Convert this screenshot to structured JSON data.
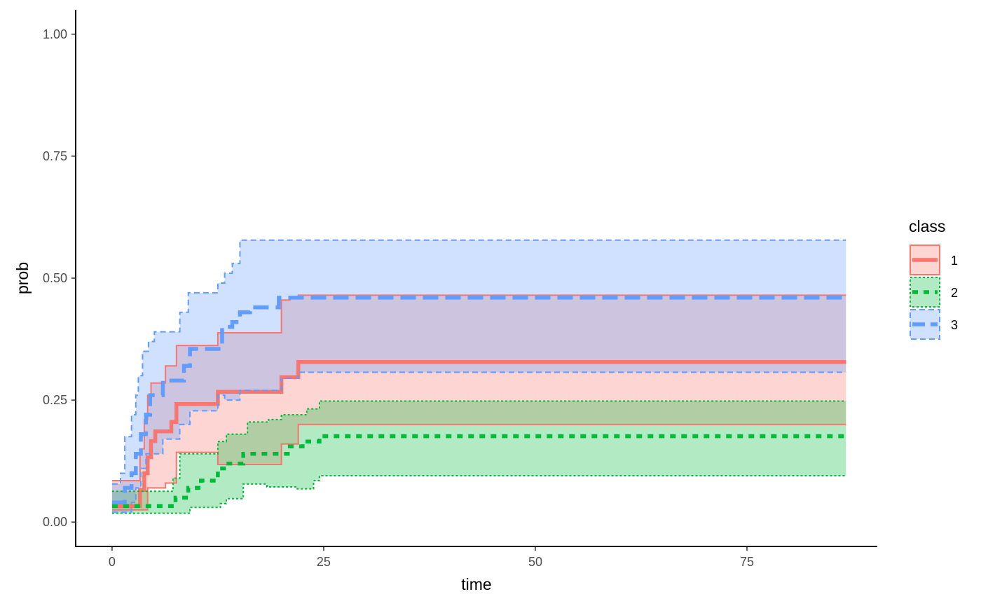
{
  "chart_data": {
    "type": "line",
    "step": true,
    "xlabel": "time",
    "ylabel": "prob",
    "xlim": [
      -4.3,
      90.4
    ],
    "ylim": [
      -0.05,
      1.05
    ],
    "x_ticks": [
      0,
      25,
      50,
      75
    ],
    "x_tick_labels": [
      "0",
      "25",
      "50",
      "75"
    ],
    "y_ticks": [
      0,
      0.25,
      0.5,
      0.75,
      1.0
    ],
    "y_tick_labels": [
      "0.00",
      "0.25",
      "0.50",
      "0.75",
      "1.00"
    ],
    "grid": false,
    "legend": {
      "title": "class",
      "placement": "right"
    },
    "series": [
      {
        "name": "1",
        "color": "#F8766D",
        "dash": "solid",
        "estimate": [
          [
            0,
            0.033
          ],
          [
            2.3,
            0.033
          ],
          [
            3.3,
            0.066
          ],
          [
            3.8,
            0.1
          ],
          [
            4.2,
            0.133
          ],
          [
            4.6,
            0.166
          ],
          [
            5.1,
            0.186
          ],
          [
            7.0,
            0.205
          ],
          [
            7.6,
            0.242
          ],
          [
            12.5,
            0.267
          ],
          [
            20.0,
            0.297
          ],
          [
            22.0,
            0.328
          ],
          [
            86.7,
            0.328
          ]
        ],
        "upper": [
          [
            0,
            0.085
          ],
          [
            2.3,
            0.085
          ],
          [
            3.3,
            0.15
          ],
          [
            3.8,
            0.21
          ],
          [
            4.2,
            0.26
          ],
          [
            4.6,
            0.285
          ],
          [
            6.3,
            0.32
          ],
          [
            7.6,
            0.362
          ],
          [
            12.5,
            0.388
          ],
          [
            20.0,
            0.455
          ],
          [
            21.0,
            0.46
          ],
          [
            22.0,
            0.465
          ],
          [
            86.7,
            0.465
          ]
        ],
        "lower": [
          [
            0,
            0.025
          ],
          [
            2.3,
            0.025
          ],
          [
            3.3,
            0.025
          ],
          [
            4.2,
            0.07
          ],
          [
            6.3,
            0.08
          ],
          [
            7.6,
            0.143
          ],
          [
            12.5,
            0.118
          ],
          [
            20.0,
            0.16
          ],
          [
            22.0,
            0.2
          ],
          [
            86.7,
            0.2
          ]
        ]
      },
      {
        "name": "2",
        "color": "#00BA38",
        "dash": "dotted",
        "estimate": [
          [
            0,
            0.033
          ],
          [
            7.5,
            0.05
          ],
          [
            9.0,
            0.07
          ],
          [
            10.5,
            0.085
          ],
          [
            12.5,
            0.11
          ],
          [
            13.5,
            0.12
          ],
          [
            15.5,
            0.14
          ],
          [
            21.0,
            0.155
          ],
          [
            22.5,
            0.165
          ],
          [
            24.5,
            0.176
          ],
          [
            86.7,
            0.176
          ]
        ],
        "upper": [
          [
            0,
            0.063
          ],
          [
            7.2,
            0.09
          ],
          [
            8.0,
            0.14
          ],
          [
            12.5,
            0.165
          ],
          [
            13.5,
            0.18
          ],
          [
            16.0,
            0.205
          ],
          [
            18.5,
            0.21
          ],
          [
            20.0,
            0.22
          ],
          [
            23.0,
            0.232
          ],
          [
            24.5,
            0.248
          ],
          [
            86.7,
            0.248
          ]
        ],
        "lower": [
          [
            0,
            0.018
          ],
          [
            8.7,
            0.018
          ],
          [
            9.2,
            0.03
          ],
          [
            12.8,
            0.038
          ],
          [
            13.5,
            0.048
          ],
          [
            15.5,
            0.078
          ],
          [
            18.3,
            0.072
          ],
          [
            21.8,
            0.068
          ],
          [
            23.8,
            0.085
          ],
          [
            24.5,
            0.095
          ],
          [
            86.7,
            0.095
          ]
        ]
      },
      {
        "name": "3",
        "color": "#619CFF",
        "dash": "dashed",
        "estimate": [
          [
            0,
            0.04
          ],
          [
            1.5,
            0.07
          ],
          [
            2.3,
            0.1
          ],
          [
            2.8,
            0.14
          ],
          [
            3.4,
            0.18
          ],
          [
            4.0,
            0.22
          ],
          [
            4.5,
            0.26
          ],
          [
            6.0,
            0.29
          ],
          [
            8.5,
            0.32
          ],
          [
            9.2,
            0.355
          ],
          [
            13.0,
            0.4
          ],
          [
            14.2,
            0.41
          ],
          [
            15.1,
            0.43
          ],
          [
            16.3,
            0.44
          ],
          [
            19.7,
            0.46
          ],
          [
            86.7,
            0.46
          ]
        ],
        "upper": [
          [
            0,
            0.078
          ],
          [
            1.0,
            0.1
          ],
          [
            1.5,
            0.175
          ],
          [
            2.3,
            0.22
          ],
          [
            2.8,
            0.26
          ],
          [
            3.1,
            0.3
          ],
          [
            3.6,
            0.35
          ],
          [
            4.3,
            0.37
          ],
          [
            5.0,
            0.39
          ],
          [
            8.0,
            0.43
          ],
          [
            9.0,
            0.47
          ],
          [
            12.5,
            0.49
          ],
          [
            13.3,
            0.51
          ],
          [
            14.2,
            0.53
          ],
          [
            15.1,
            0.578
          ],
          [
            86.7,
            0.578
          ]
        ],
        "lower": [
          [
            0,
            0.02
          ],
          [
            2.3,
            0.04
          ],
          [
            2.8,
            0.07
          ],
          [
            3.4,
            0.11
          ],
          [
            4.0,
            0.14
          ],
          [
            6.0,
            0.17
          ],
          [
            8.0,
            0.2
          ],
          [
            9.2,
            0.228
          ],
          [
            12.5,
            0.26
          ],
          [
            13.3,
            0.25
          ],
          [
            15.1,
            0.27
          ],
          [
            20.0,
            0.295
          ],
          [
            22.0,
            0.307
          ],
          [
            86.7,
            0.307
          ]
        ]
      }
    ]
  }
}
